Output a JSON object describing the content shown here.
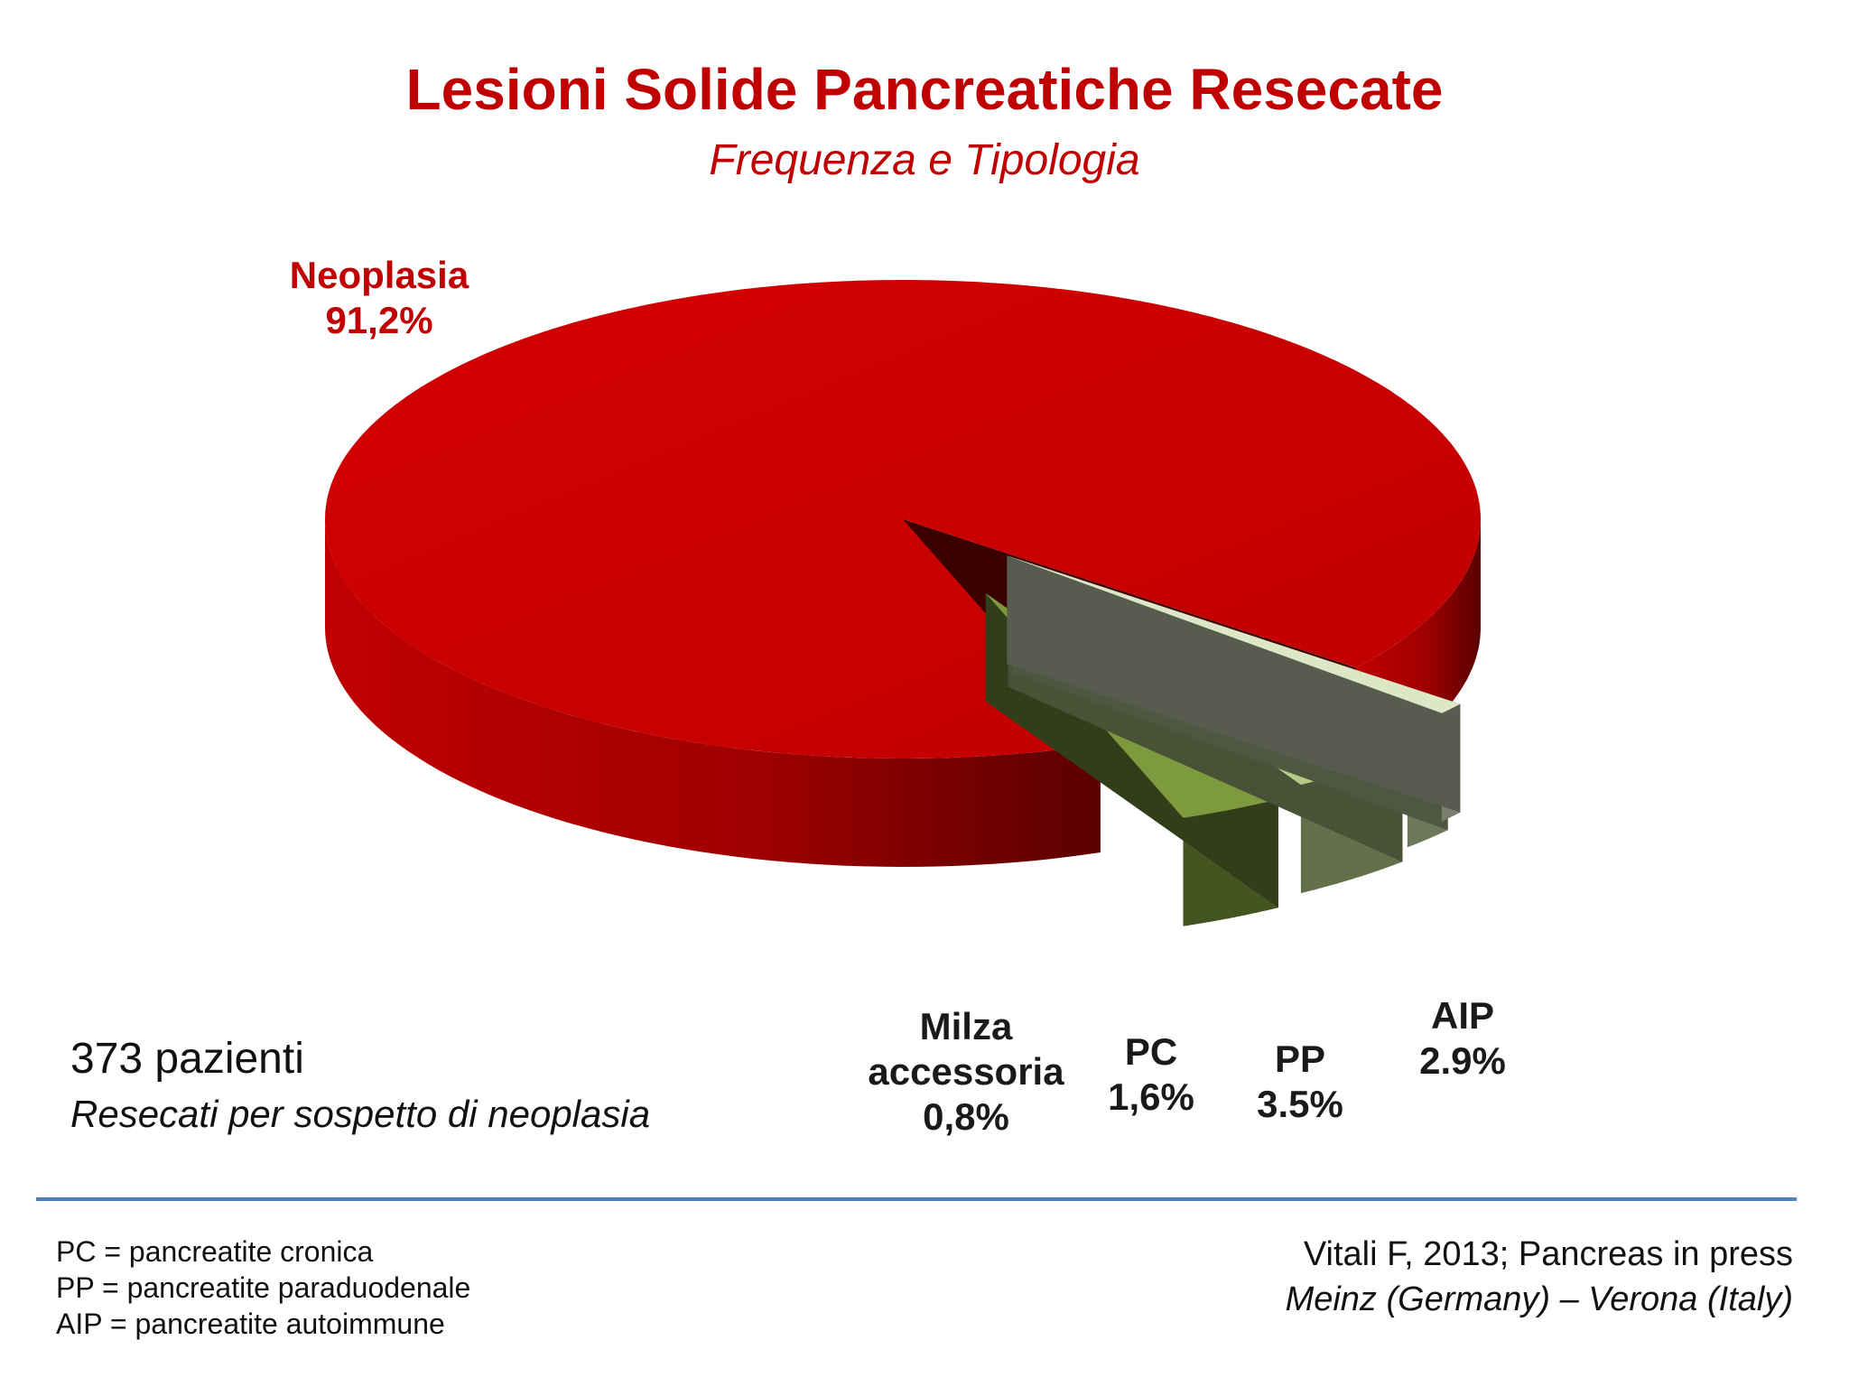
{
  "header": {
    "title": "Lesioni Solide Pancreatiche Resecate",
    "subtitle": "Frequenza e Tipologia"
  },
  "colors": {
    "title": "#c00000",
    "neoplasia": "#cc0000",
    "milza": "#dde7c6",
    "pc": "#c7d9a3",
    "pp": "#b4cc86",
    "aip": "#7e9a3e"
  },
  "chart_data": {
    "type": "pie",
    "style": "3d-exploded",
    "title": "Lesioni Solide Pancreatiche Resecate",
    "subtitle": "Frequenza e Tipologia",
    "slices": [
      {
        "label": "Neoplasia",
        "value": 91.2,
        "display": "91,2%"
      },
      {
        "label": "Milza accessoria",
        "value": 0.8,
        "display": "0,8%"
      },
      {
        "label": "PC",
        "value": 1.6,
        "display": "1,6%"
      },
      {
        "label": "PP",
        "value": 3.5,
        "display": "3.5%"
      },
      {
        "label": "AIP",
        "value": 2.9,
        "display": "2.9%"
      }
    ],
    "labels": {
      "neoplasia": {
        "name": "Neoplasia",
        "pct": "91,2%"
      },
      "milza": {
        "name1": "Milza",
        "name2": "accessoria",
        "pct": "0,8%"
      },
      "pc": {
        "name": "PC",
        "pct": "1,6%"
      },
      "pp": {
        "name": "PP",
        "pct": "3.5%"
      },
      "aip": {
        "name": "AIP",
        "pct": "2.9%"
      }
    }
  },
  "notes": {
    "patients": "373 pazienti",
    "patients_sub": "Resecati per sospetto di neoplasia"
  },
  "legend": [
    "PC = pancreatite cronica",
    "PP = pancreatite paraduodenale",
    "AIP = pancreatite autoimmune"
  ],
  "reference": {
    "line1": "Vitali F, 2013; Pancreas in press",
    "line2": "Meinz (Germany) – Verona (Italy)"
  }
}
